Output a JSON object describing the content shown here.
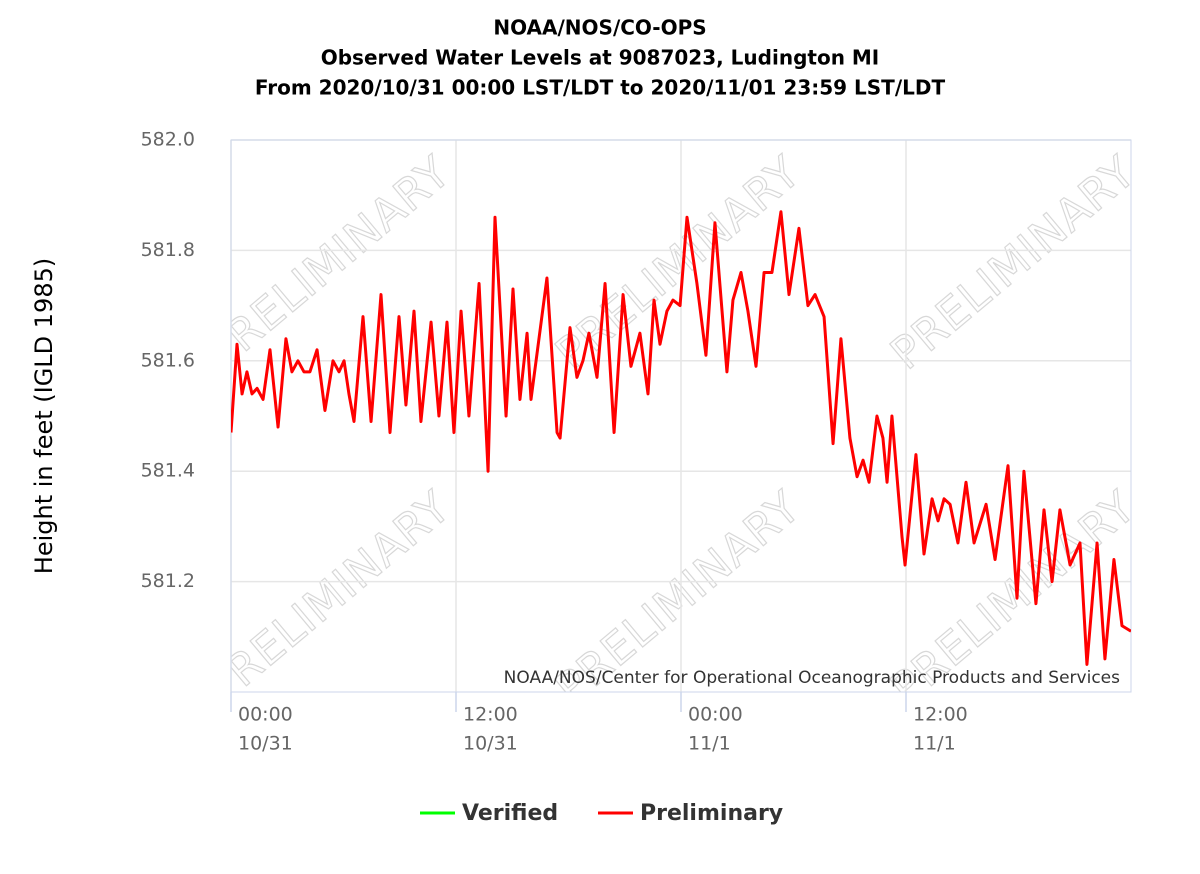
{
  "chart_data": {
    "type": "line",
    "title": [
      "NOAA/NOS/CO-OPS",
      "Observed Water Levels at 9087023, Ludington MI",
      "From 2020/10/31 00:00 LST/LDT to 2020/11/01 23:59 LST/LDT"
    ],
    "y_label": "Height in feet (IGLD 1985)",
    "credits": "NOAA/NOS/Center for Operational Oceanographic Products and Services",
    "watermark": "PRELIMINARY",
    "x": [
      0,
      0.32,
      0.59,
      0.85,
      1.12,
      1.39,
      1.71,
      2.08,
      2.51,
      2.93,
      3.25,
      3.57,
      3.89,
      4.21,
      4.59,
      5.01,
      5.44,
      5.76,
      6.03,
      6.29,
      6.56,
      7.04,
      7.47,
      8.0,
      8.48,
      8.96,
      9.33,
      9.76,
      10.13,
      10.67,
      11.09,
      11.52,
      11.89,
      12.27,
      12.69,
      13.23,
      13.71,
      14.08,
      14.67,
      15.04,
      15.41,
      15.79,
      16.0,
      16.85,
      17.39,
      17.55,
      18.08,
      18.45,
      18.77,
      19.09,
      19.52,
      19.95,
      20.43,
      20.91,
      21.33,
      21.81,
      22.24,
      22.56,
      22.88,
      23.25,
      23.57,
      23.95,
      24.32,
      24.85,
      25.33,
      25.81,
      26.45,
      26.77,
      27.2,
      27.57,
      28.0,
      28.43,
      28.85,
      29.33,
      29.76,
      30.29,
      30.77,
      31.15,
      31.63,
      32.11,
      32.53,
      33.01,
      33.39,
      33.71,
      34.03,
      34.45,
      34.77,
      34.99,
      35.25,
      35.79,
      35.95,
      36.53,
      36.96,
      37.39,
      37.71,
      38.03,
      38.35,
      38.77,
      39.2,
      39.63,
      40.27,
      40.75,
      41.44,
      41.92,
      42.29,
      42.93,
      43.36,
      43.79,
      44.21,
      44.75,
      45.28,
      45.65,
      46.19,
      46.61,
      47.09,
      47.52,
      48.0
    ],
    "series": [
      {
        "name": "Verified",
        "color": "#00ff00",
        "values": [
          null,
          null,
          null,
          null,
          null,
          null,
          null,
          null,
          null,
          null,
          null,
          null,
          null,
          null,
          null,
          null,
          null,
          null,
          null,
          null,
          null,
          null,
          null,
          null,
          null,
          null,
          null,
          null,
          null,
          null,
          null,
          null,
          null,
          null,
          null,
          null,
          null,
          null,
          null,
          null,
          null,
          null,
          null,
          null,
          null,
          null,
          null,
          null,
          null,
          null,
          null,
          null,
          null,
          null,
          null,
          null,
          null,
          null,
          null,
          null,
          null,
          null,
          null,
          null,
          null,
          null,
          null,
          null,
          null,
          null,
          null,
          null,
          null,
          null,
          null,
          null,
          null,
          null,
          null,
          null,
          null,
          null,
          null,
          null,
          null,
          null,
          null,
          null,
          null,
          null,
          null,
          null,
          null,
          null,
          null,
          null,
          null,
          null,
          null,
          null,
          null,
          null,
          null,
          null,
          null,
          null,
          null,
          null,
          null,
          null,
          null,
          null,
          null,
          null,
          null,
          null,
          null
        ]
      },
      {
        "name": "Preliminary",
        "color": "#ff0000",
        "values": [
          581.47,
          581.63,
          581.54,
          581.58,
          581.54,
          581.55,
          581.53,
          581.62,
          581.48,
          581.64,
          581.58,
          581.6,
          581.58,
          581.58,
          581.62,
          581.51,
          581.6,
          581.58,
          581.6,
          581.54,
          581.49,
          581.68,
          581.49,
          581.72,
          581.47,
          581.68,
          581.52,
          581.69,
          581.49,
          581.67,
          581.5,
          581.67,
          581.47,
          581.69,
          581.5,
          581.74,
          581.4,
          581.86,
          581.5,
          581.73,
          581.53,
          581.65,
          581.53,
          581.75,
          581.47,
          581.46,
          581.66,
          581.57,
          581.6,
          581.65,
          581.57,
          581.74,
          581.47,
          581.72,
          581.59,
          581.65,
          581.54,
          581.71,
          581.63,
          581.69,
          581.71,
          581.7,
          581.86,
          581.74,
          581.61,
          581.85,
          581.58,
          581.71,
          581.76,
          581.69,
          581.59,
          581.76,
          581.76,
          581.87,
          581.72,
          581.84,
          581.7,
          581.72,
          581.68,
          581.45,
          581.64,
          581.46,
          581.39,
          581.42,
          581.38,
          581.5,
          581.46,
          581.38,
          581.5,
          581.28,
          581.23,
          581.43,
          581.25,
          581.35,
          581.31,
          581.35,
          581.34,
          581.27,
          581.38,
          581.27,
          581.34,
          581.24,
          581.41,
          581.17,
          581.4,
          581.16,
          581.33,
          581.2,
          581.33,
          581.23,
          581.27,
          581.05,
          581.27,
          581.06,
          581.24,
          581.12,
          581.11
        ]
      }
    ],
    "xlim": [
      0,
      48
    ],
    "xticks": [
      {
        "value": 0,
        "label": [
          "00:00",
          "10/31"
        ]
      },
      {
        "value": 12,
        "label": [
          "12:00",
          "10/31"
        ]
      },
      {
        "value": 24,
        "label": [
          "00:00",
          "11/1"
        ]
      },
      {
        "value": 36,
        "label": [
          "12:00",
          "11/1"
        ]
      }
    ],
    "ylim": [
      581.0,
      582.0
    ],
    "yticks": [
      581.2,
      581.4,
      581.6,
      581.8,
      {
        "value": 582,
        "label": "582.0"
      }
    ],
    "grid": true
  }
}
